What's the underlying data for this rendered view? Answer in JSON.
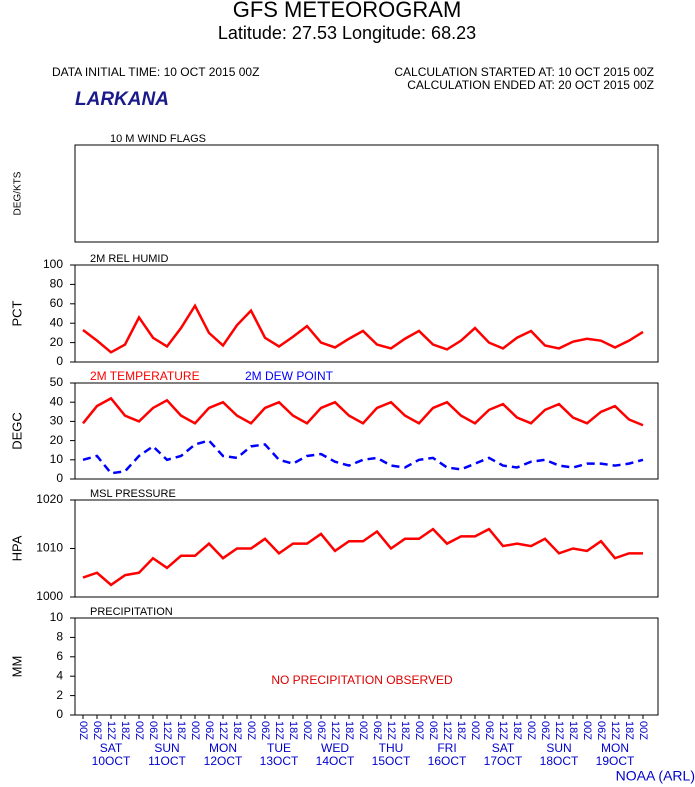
{
  "header": {
    "title": "GFS METEOROGRAM",
    "subtitle": "Latitude: 27.53 Longitude:  68.23",
    "initial_time": "DATA INITIAL TIME: 10 OCT 2015 00Z",
    "calc_started": "CALCULATION STARTED AT: 10 OCT 2015 00Z",
    "calc_ended": "CALCULATION ENDED AT: 20 OCT 2015 00Z",
    "station": "LARKANA",
    "credit": "NOAA (ARL)"
  },
  "time": {
    "labels": [
      "00Z",
      "06Z",
      "12Z",
      "18Z",
      "00Z",
      "06Z",
      "12Z",
      "18Z",
      "00Z",
      "06Z",
      "12Z",
      "18Z",
      "00Z",
      "06Z",
      "12Z",
      "18Z",
      "00Z",
      "06Z",
      "12Z",
      "18Z",
      "00Z",
      "06Z",
      "12Z",
      "18Z",
      "00Z",
      "06Z",
      "12Z",
      "18Z",
      "00Z",
      "06Z",
      "12Z",
      "18Z",
      "00Z",
      "06Z",
      "12Z",
      "18Z",
      "00Z",
      "06Z",
      "12Z",
      "18Z",
      "00Z"
    ],
    "days": [
      {
        "day": "SAT",
        "date": "10OCT"
      },
      {
        "day": "SUN",
        "date": "11OCT"
      },
      {
        "day": "MON",
        "date": "12OCT"
      },
      {
        "day": "TUE",
        "date": "13OCT"
      },
      {
        "day": "WED",
        "date": "14OCT"
      },
      {
        "day": "THU",
        "date": "15OCT"
      },
      {
        "day": "FRI",
        "date": "16OCT"
      },
      {
        "day": "SAT",
        "date": "17OCT"
      },
      {
        "day": "SUN",
        "date": "18OCT"
      },
      {
        "day": "MON",
        "date": "19OCT"
      }
    ]
  },
  "chart_data": [
    {
      "type": "wind",
      "title": "10 M  WIND FLAGS",
      "ylabel": "DEG/KTS"
    },
    {
      "type": "line",
      "title": "2M REL HUMID",
      "ylabel": "PCT",
      "ylim": [
        0,
        100
      ],
      "yticks": [
        0,
        20,
        40,
        60,
        80,
        100
      ],
      "series": [
        {
          "color": "#ff0000",
          "dash": false,
          "values": [
            33,
            22,
            10,
            18,
            46,
            25,
            16,
            35,
            58,
            30,
            17,
            38,
            53,
            25,
            16,
            26,
            37,
            20,
            15,
            24,
            32,
            18,
            14,
            24,
            32,
            18,
            13,
            22,
            35,
            20,
            14,
            25,
            32,
            17,
            14,
            21,
            24,
            22,
            15,
            22,
            31
          ]
        }
      ]
    },
    {
      "type": "line",
      "ylabel": "DEGC",
      "ylim": [
        0,
        50
      ],
      "yticks": [
        0,
        10,
        20,
        30,
        40,
        50
      ],
      "series": [
        {
          "name": "2M TEMPERATURE",
          "color": "#ff0000",
          "dash": false,
          "values": [
            29,
            38,
            42,
            33,
            30,
            37,
            41,
            33,
            29,
            37,
            40,
            33,
            29,
            37,
            40,
            33,
            29,
            37,
            40,
            33,
            29,
            37,
            40,
            33,
            29,
            37,
            40,
            33,
            29,
            36,
            39,
            32,
            29,
            36,
            39,
            32,
            29,
            35,
            38,
            31,
            28
          ]
        },
        {
          "name": "2M  DEW POINT",
          "color": "#0000ff",
          "dash": true,
          "values": [
            10,
            12,
            3,
            4,
            12,
            17,
            10,
            12,
            18,
            20,
            12,
            11,
            17,
            18,
            10,
            8,
            12,
            13,
            9,
            7,
            10,
            11,
            7,
            6,
            10,
            11,
            6,
            5,
            8,
            11,
            7,
            6,
            9,
            10,
            7,
            6,
            8,
            8,
            7,
            8,
            10
          ]
        }
      ]
    },
    {
      "type": "line",
      "title": "MSL PRESSURE",
      "ylabel": "HPA",
      "ylim": [
        1000,
        1020
      ],
      "yticks": [
        1000,
        1010,
        1020
      ],
      "series": [
        {
          "color": "#ff0000",
          "dash": false,
          "values": [
            1004,
            1005,
            1002.5,
            1004.5,
            1005,
            1008,
            1006,
            1008.5,
            1008.5,
            1011,
            1008,
            1010,
            1010,
            1012,
            1009,
            1011,
            1011,
            1013,
            1009.5,
            1011.5,
            1011.5,
            1013.5,
            1010,
            1012,
            1012,
            1014,
            1011,
            1012.5,
            1012.5,
            1014,
            1010.5,
            1011,
            1010.5,
            1012,
            1009,
            1010,
            1009.5,
            1011.5,
            1008,
            1009,
            1009
          ]
        }
      ]
    },
    {
      "type": "line",
      "title": "PRECIPITATION",
      "ylabel": "MM",
      "ylim": [
        0,
        10
      ],
      "yticks": [
        0,
        2,
        4,
        6,
        8,
        10
      ],
      "annotation": "NO PRECIPITATION OBSERVED",
      "series": []
    }
  ]
}
